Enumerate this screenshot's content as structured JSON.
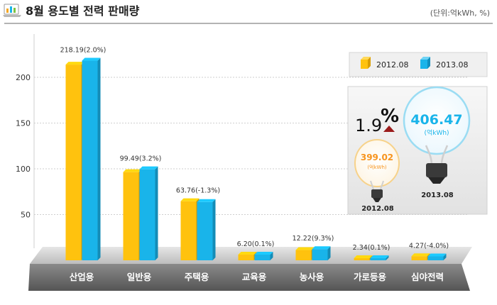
{
  "header": {
    "title": "8월 용도별 전력 판매량",
    "unit": "(단위:억kWh, %)"
  },
  "chart_data": {
    "type": "bar",
    "categories": [
      "산업용",
      "일반용",
      "주택용",
      "교육용",
      "농사용",
      "가로등용",
      "심야전력"
    ],
    "series": [
      {
        "name": "2012.08",
        "values": [
          213.9,
          96.4,
          64.6,
          6.19,
          11.2,
          2.34,
          4.45
        ],
        "color": "#FFC20E"
      },
      {
        "name": "2013.08",
        "values": [
          218.19,
          99.49,
          63.76,
          6.2,
          12.22,
          2.34,
          4.27
        ],
        "color": "#19B4EA"
      }
    ],
    "data_labels": [
      "218.19(2.0%)",
      "99.49(3.2%)",
      "63.76(-1.3%)",
      "6.20(0.1%)",
      "12.22(9.3%)",
      "2.34(0.1%)",
      "4.27(-4.0%)"
    ],
    "yticks": [
      50,
      100,
      150,
      200
    ],
    "ylim": [
      0,
      240
    ],
    "grid": true,
    "legend": "top-right"
  },
  "summary": {
    "change_value": "1.9",
    "change_unit": "%",
    "prev_value": "399.02",
    "prev_unit": "(억kWh)",
    "prev_label": "2012.08",
    "curr_value": "406.47",
    "curr_unit": "(억kWh)",
    "curr_label": "2013.08",
    "prev_color": "#F7941D",
    "curr_color": "#19B4EA",
    "arrow_color": "#9B1B1B"
  }
}
